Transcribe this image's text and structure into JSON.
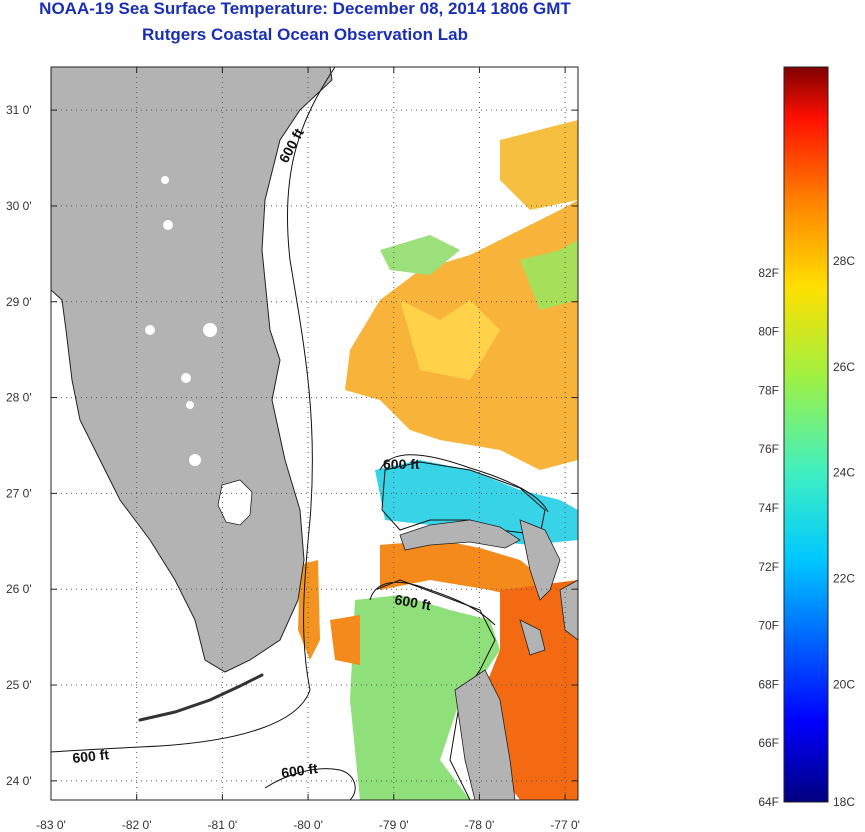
{
  "header": {
    "title": "NOAA-19 Sea Surface Temperature:  December 08, 2014 1806 GMT",
    "subtitle": "Rutgers Coastal Ocean Observation Lab"
  },
  "map": {
    "lon_range": [
      -83,
      -76.85
    ],
    "lat_range": [
      23.8,
      31.45
    ],
    "lon_ticks": [
      {
        "value": -83,
        "label": "-83 0'"
      },
      {
        "value": -82,
        "label": "-82 0'"
      },
      {
        "value": -81,
        "label": "-81 0'"
      },
      {
        "value": -80,
        "label": "-80 0'"
      },
      {
        "value": -79,
        "label": "-79 0'"
      },
      {
        "value": -78,
        "label": "-78 0'"
      },
      {
        "value": -77,
        "label": "-77 0'"
      }
    ],
    "lat_ticks": [
      {
        "value": 31,
        "label": "31 0'"
      },
      {
        "value": 30,
        "label": "30 0'"
      },
      {
        "value": 29,
        "label": "29 0'"
      },
      {
        "value": 28,
        "label": "28 0'"
      },
      {
        "value": 27,
        "label": "27 0'"
      },
      {
        "value": 26,
        "label": "26 0'"
      },
      {
        "value": 25,
        "label": "25 0'"
      },
      {
        "value": 24,
        "label": "24 0'"
      }
    ],
    "contour_label": "600 ft",
    "land_color": "#b3b3b3",
    "grid": true
  },
  "colorbar": {
    "f_labels": [
      "82F",
      "80F",
      "78F",
      "76F",
      "74F",
      "72F",
      "70F",
      "68F",
      "66F",
      "64F"
    ],
    "c_labels": [
      "28C",
      "26C",
      "24C",
      "22C",
      "20C",
      "18C"
    ],
    "stops": [
      "#800000",
      "#ff0000",
      "#ff8000",
      "#ffff00",
      "#80ff80",
      "#00ffff",
      "#0080ff",
      "#0000ff",
      "#000080"
    ]
  }
}
